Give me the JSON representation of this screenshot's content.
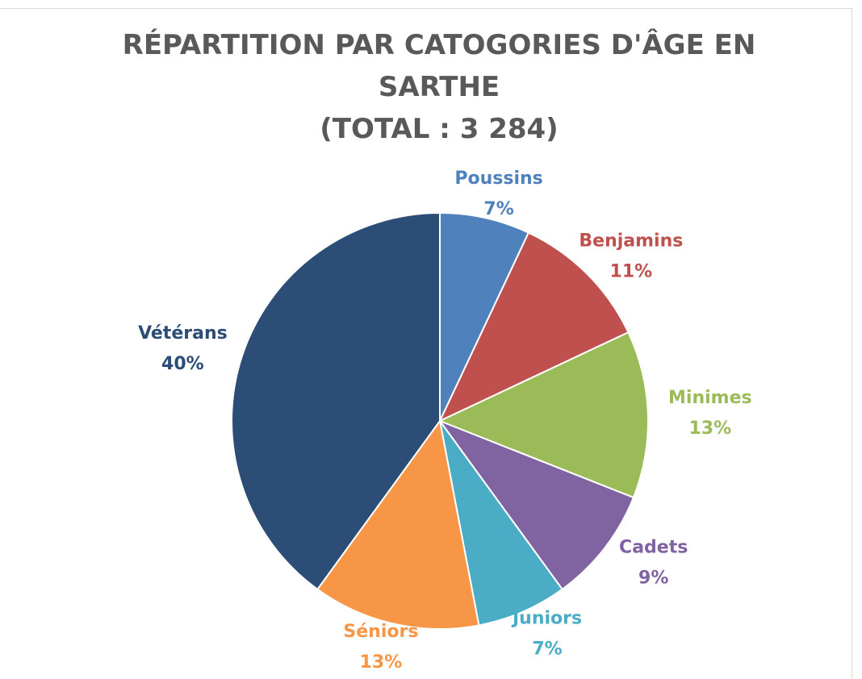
{
  "chart_data": {
    "type": "pie",
    "title": "RÉPARTITION PAR CATOGORIES D'ÂGE EN SARTHE",
    "subtitle": "(TOTAL : 3 284)",
    "categories": [
      "Poussins",
      "Benjamins",
      "Minimes",
      "Cadets",
      "Juniors",
      "Séniors",
      "Vétérans"
    ],
    "values": [
      7,
      11,
      13,
      9,
      7,
      13,
      40
    ],
    "value_labels": [
      "7%",
      "11%",
      "13%",
      "9%",
      "7%",
      "13%",
      "40%"
    ],
    "colors": [
      "#4f81bd",
      "#c0504d",
      "#9bbb59",
      "#8064a2",
      "#4bacc6",
      "#f79646",
      "#2c4d75"
    ]
  }
}
